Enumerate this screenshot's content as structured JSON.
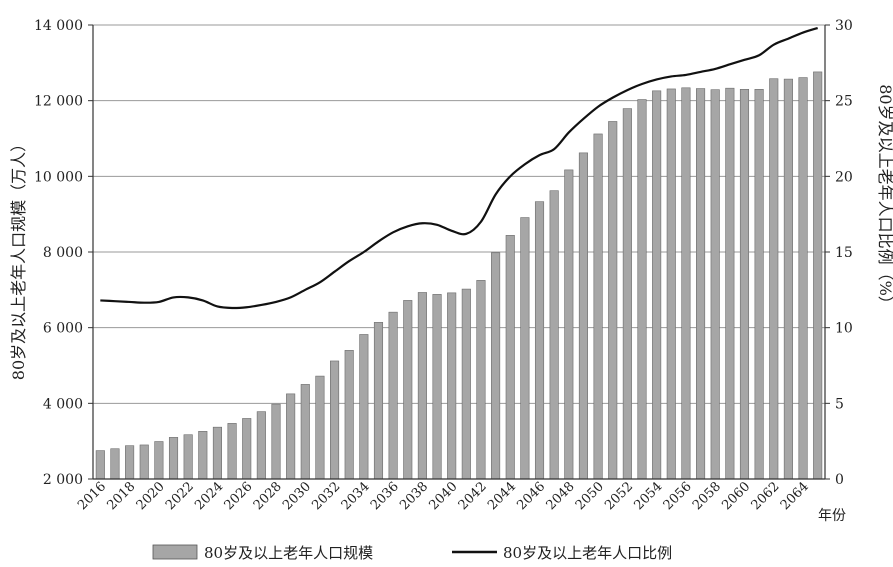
{
  "chart_data": {
    "type": "bar+line",
    "categories": [
      2016,
      2017,
      2018,
      2019,
      2020,
      2021,
      2022,
      2023,
      2024,
      2025,
      2026,
      2027,
      2028,
      2029,
      2030,
      2031,
      2032,
      2033,
      2034,
      2035,
      2036,
      2037,
      2038,
      2039,
      2040,
      2041,
      2042,
      2043,
      2044,
      2045,
      2046,
      2047,
      2048,
      2049,
      2050,
      2051,
      2052,
      2053,
      2054,
      2055,
      2056,
      2057,
      2058,
      2059,
      2060,
      2061,
      2062,
      2063,
      2064,
      2065
    ],
    "x_tick_labels": [
      "2016",
      "2018",
      "2020",
      "2022",
      "2024",
      "2026",
      "2028",
      "2030",
      "2032",
      "2034",
      "2036",
      "2038",
      "2040",
      "2042",
      "2044",
      "2046",
      "2048",
      "2050",
      "2052",
      "2054",
      "2056",
      "2058",
      "2060",
      "2062",
      "2064"
    ],
    "x_unit_label": "年份",
    "y_left": {
      "label": "80岁及以上老年人口规模（万人）",
      "ylim": [
        2000,
        14000
      ],
      "tick_labels": [
        "2 000",
        "4 000",
        "6 000",
        "8 000",
        "10 000",
        "12 000",
        "14 000"
      ]
    },
    "y_right": {
      "label": "80岁及以上老年人口比例（%）",
      "ylim": [
        0,
        30
      ],
      "tick_labels": [
        "0",
        "5",
        "10",
        "15",
        "20",
        "25",
        "30"
      ]
    },
    "grid": true,
    "legend_position": "bottom",
    "series": [
      {
        "name": "80岁及以上老年人口规模",
        "type": "bar",
        "axis": "left",
        "color": "#a6a6a6",
        "values": [
          2750,
          2800,
          2880,
          2900,
          2990,
          3100,
          3170,
          3260,
          3370,
          3470,
          3600,
          3780,
          3980,
          4250,
          4500,
          4720,
          5120,
          5400,
          5820,
          6140,
          6410,
          6720,
          6930,
          6880,
          6920,
          7020,
          7250,
          7980,
          8440,
          8910,
          9330,
          9620,
          10170,
          10620,
          11120,
          11450,
          11790,
          12030,
          12260,
          12310,
          12340,
          12320,
          12290,
          12330,
          12300,
          12300,
          12580,
          12570,
          12610,
          12760
        ]
      },
      {
        "name": "80岁及以上老年人口比例",
        "type": "line",
        "axis": "right",
        "color": "#111111",
        "values": [
          11.8,
          11.75,
          11.7,
          11.65,
          11.7,
          12.0,
          12.0,
          11.8,
          11.4,
          11.3,
          11.35,
          11.5,
          11.7,
          12.0,
          12.5,
          13.0,
          13.7,
          14.4,
          15.0,
          15.7,
          16.3,
          16.7,
          16.9,
          16.8,
          16.4,
          16.2,
          17.0,
          18.8,
          20.0,
          20.8,
          21.4,
          21.8,
          22.9,
          23.8,
          24.6,
          25.2,
          25.7,
          26.1,
          26.4,
          26.6,
          26.7,
          26.9,
          27.1,
          27.4,
          27.7,
          28.0,
          28.7,
          29.1,
          29.5,
          29.8
        ]
      }
    ]
  }
}
